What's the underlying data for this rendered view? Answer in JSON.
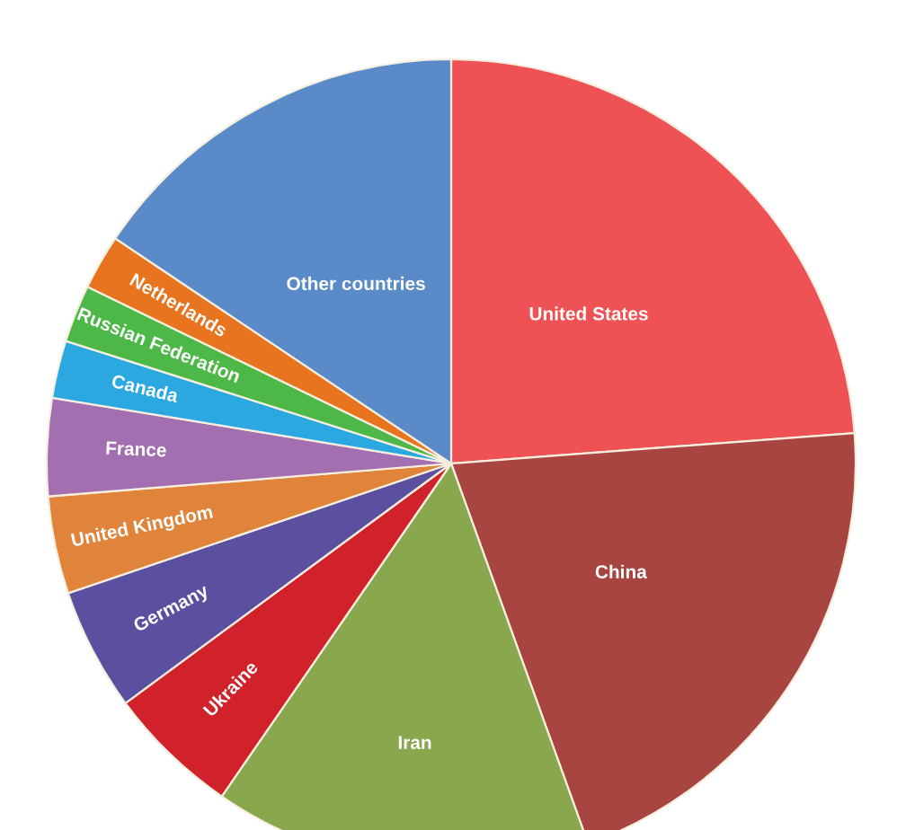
{
  "chart_data": {
    "type": "pie",
    "categories": [
      "United States",
      "China",
      "Iran",
      "Ukraine",
      "Germany",
      "United Kingdom",
      "France",
      "Canada",
      "Russian Federation",
      "Netherlands",
      "Other countries"
    ],
    "values": [
      23.8,
      20.7,
      15.1,
      5.3,
      4.9,
      3.9,
      3.9,
      2.3,
      2.3,
      2.2,
      15.6
    ],
    "colors": [
      "#ee5254",
      "#a84541",
      "#89a74c",
      "#d1212a",
      "#5b4f9f",
      "#e1843b",
      "#a36fb0",
      "#2ba8e0",
      "#4db748",
      "#e8741f",
      "#5a8bc8"
    ]
  }
}
